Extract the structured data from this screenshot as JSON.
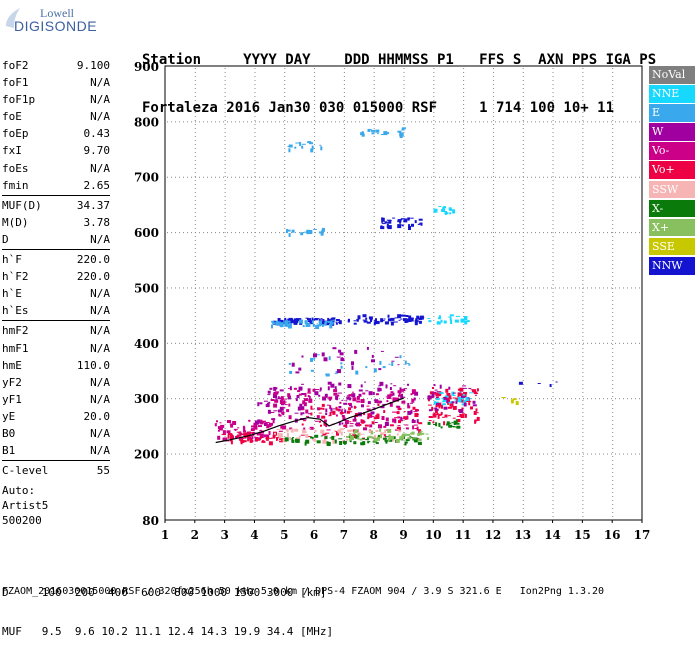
{
  "logo": {
    "line1": "Lowell",
    "line2": "DIGISONDE"
  },
  "header": {
    "labels_line": "Station     YYYY DAY    DDD HHMMSS P1   FFS S  AXN PPS IGA PS",
    "values_line": "Fortaleza 2016 Jan30 030 015000 RSF     1 714 100 10+ 11"
  },
  "params": {
    "group1": [
      {
        "k": "foF2",
        "v": "9.100"
      },
      {
        "k": "foF1",
        "v": "N/A"
      },
      {
        "k": "foF1p",
        "v": "N/A"
      },
      {
        "k": "foE",
        "v": "N/A"
      },
      {
        "k": "foEp",
        "v": "0.43"
      },
      {
        "k": "fxI",
        "v": "9.70"
      },
      {
        "k": "foEs",
        "v": "N/A"
      },
      {
        "k": "fmin",
        "v": "2.65"
      }
    ],
    "group2": [
      {
        "k": "MUF(D)",
        "v": "34.37"
      },
      {
        "k": "M(D)",
        "v": "3.78"
      },
      {
        "k": "D",
        "v": "N/A"
      }
    ],
    "group3": [
      {
        "k": "h`F",
        "v": "220.0"
      },
      {
        "k": "h`F2",
        "v": "220.0"
      },
      {
        "k": "h`E",
        "v": "N/A"
      },
      {
        "k": "h`Es",
        "v": "N/A"
      }
    ],
    "group4": [
      {
        "k": "hmF2",
        "v": "N/A"
      },
      {
        "k": "hmF1",
        "v": "N/A"
      },
      {
        "k": "hmE",
        "v": "110.0"
      },
      {
        "k": "yF2",
        "v": "N/A"
      },
      {
        "k": "yF1",
        "v": "N/A"
      },
      {
        "k": "yE",
        "v": "20.0"
      },
      {
        "k": "B0",
        "v": "N/A"
      },
      {
        "k": "B1",
        "v": "N/A"
      }
    ],
    "group5": [
      {
        "k": "C-level",
        "v": "55"
      }
    ]
  },
  "auto": {
    "line1": "Auto:",
    "line2": "Artist5",
    "line3": "500200"
  },
  "legend": [
    {
      "label": "NoVal",
      "color": "#7f7f7f"
    },
    {
      "label": "NNE",
      "color": "#17d8ff"
    },
    {
      "label": "E",
      "color": "#3aa8ec"
    },
    {
      "label": "W",
      "color": "#a000a0"
    },
    {
      "label": "Vo-",
      "color": "#cc0088"
    },
    {
      "label": "Vo+",
      "color": "#ee0044"
    },
    {
      "label": "SSW",
      "color": "#f6b4b4"
    },
    {
      "label": "X-",
      "color": "#0a7a0a"
    },
    {
      "label": "X+",
      "color": "#88c060"
    },
    {
      "label": "SSE",
      "color": "#c8c800"
    },
    {
      "label": "NNW",
      "color": "#1414d0"
    }
  ],
  "chart_data": {
    "type": "scatter",
    "title": "",
    "xlabel": "",
    "ylabel": "",
    "xlim": [
      1,
      17
    ],
    "ylim": [
      80,
      900
    ],
    "xticks": [
      "1",
      "2",
      "3",
      "4",
      "5",
      "6",
      "7",
      "8",
      "9",
      "10",
      "11",
      "12",
      "13",
      "14",
      "15",
      "16",
      "17"
    ],
    "yticks": [
      "80",
      "200",
      "300",
      "400",
      "500",
      "600",
      "700",
      "800",
      "900"
    ],
    "grid": true,
    "legend_position": "right",
    "trace": {
      "x": [
        2.7,
        3.2,
        3.8,
        4.3,
        4.8,
        5.3,
        5.8,
        6.2,
        6.5,
        6.8,
        7.2,
        7.6,
        8.0,
        8.5,
        9.0
      ],
      "y": [
        220,
        225,
        232,
        240,
        250,
        258,
        265,
        262,
        250,
        256,
        265,
        272,
        280,
        290,
        300
      ]
    },
    "clusters": [
      {
        "series": "NNW",
        "x": [
          4.5,
          7.4
        ],
        "y": [
          436,
          446
        ],
        "n": 70
      },
      {
        "series": "NNW",
        "x": [
          7.4,
          9.6
        ],
        "y": [
          438,
          452
        ],
        "n": 55
      },
      {
        "series": "E",
        "x": [
          4.4,
          6.6
        ],
        "y": [
          432,
          442
        ],
        "n": 40
      },
      {
        "series": "NNE",
        "x": [
          9.8,
          11.2
        ],
        "y": [
          438,
          452
        ],
        "n": 20
      },
      {
        "series": "NNW",
        "x": [
          8.2,
          9.6
        ],
        "y": [
          610,
          628
        ],
        "n": 40
      },
      {
        "series": "E",
        "x": [
          5.0,
          6.3
        ],
        "y": [
          598,
          608
        ],
        "n": 16
      },
      {
        "series": "NNE",
        "x": [
          10.0,
          10.8
        ],
        "y": [
          635,
          648
        ],
        "n": 12
      },
      {
        "series": "E",
        "x": [
          5.0,
          6.3
        ],
        "y": [
          750,
          765
        ],
        "n": 14
      },
      {
        "series": "E",
        "x": [
          7.3,
          9.0
        ],
        "y": [
          776,
          790
        ],
        "n": 18
      },
      {
        "series": "Vo-",
        "x": [
          2.6,
          4.5
        ],
        "y": [
          228,
          262
        ],
        "n": 80
      },
      {
        "series": "Vo+",
        "x": [
          2.8,
          5.0
        ],
        "y": [
          222,
          240
        ],
        "n": 50
      },
      {
        "series": "W",
        "x": [
          4.0,
          9.5
        ],
        "y": [
          255,
          330
        ],
        "n": 140
      },
      {
        "series": "Vo-",
        "x": [
          4.5,
          9.5
        ],
        "y": [
          240,
          320
        ],
        "n": 140
      },
      {
        "series": "Vo+",
        "x": [
          5.5,
          9.6
        ],
        "y": [
          228,
          290
        ],
        "n": 70
      },
      {
        "series": "SSW",
        "x": [
          4.5,
          9.0
        ],
        "y": [
          224,
          246
        ],
        "n": 60
      },
      {
        "series": "X-",
        "x": [
          5.0,
          9.5
        ],
        "y": [
          220,
          234
        ],
        "n": 60
      },
      {
        "series": "X+",
        "x": [
          7.0,
          9.8
        ],
        "y": [
          226,
          245
        ],
        "n": 40
      },
      {
        "series": "Vo+",
        "x": [
          9.8,
          11.5
        ],
        "y": [
          258,
          322
        ],
        "n": 90
      },
      {
        "series": "NNE",
        "x": [
          10.0,
          11.2
        ],
        "y": [
          290,
          312
        ],
        "n": 30
      },
      {
        "series": "X-",
        "x": [
          9.8,
          10.8
        ],
        "y": [
          248,
          262
        ],
        "n": 20
      },
      {
        "series": "W",
        "x": [
          9.8,
          11.4
        ],
        "y": [
          280,
          330
        ],
        "n": 30
      },
      {
        "series": "E",
        "x": [
          5.0,
          9.3
        ],
        "y": [
          340,
          380
        ],
        "n": 25
      },
      {
        "series": "W",
        "x": [
          5.0,
          9.3
        ],
        "y": [
          345,
          395
        ],
        "n": 25
      },
      {
        "series": "NNW",
        "x": [
          12.8,
          14.2
        ],
        "y": [
          325,
          335
        ],
        "n": 4
      },
      {
        "series": "SSE",
        "x": [
          12.2,
          12.8
        ],
        "y": [
          292,
          306
        ],
        "n": 5
      }
    ]
  },
  "footer": {
    "line1": "D     100  200  400  600  800 1000 1500 3000 [km]",
    "line2": "MUF   9.5  9.6 10.2 11.1 12.4 14.3 19.9 34.4 [MHz]",
    "fileinfo": "FZAOM_2016030015000.RSF / 320fx256h 50 kHz 5.0 km / DPS-4 FZAOM 904 / 3.9 S 321.6 E   Ion2Png 1.3.20"
  }
}
